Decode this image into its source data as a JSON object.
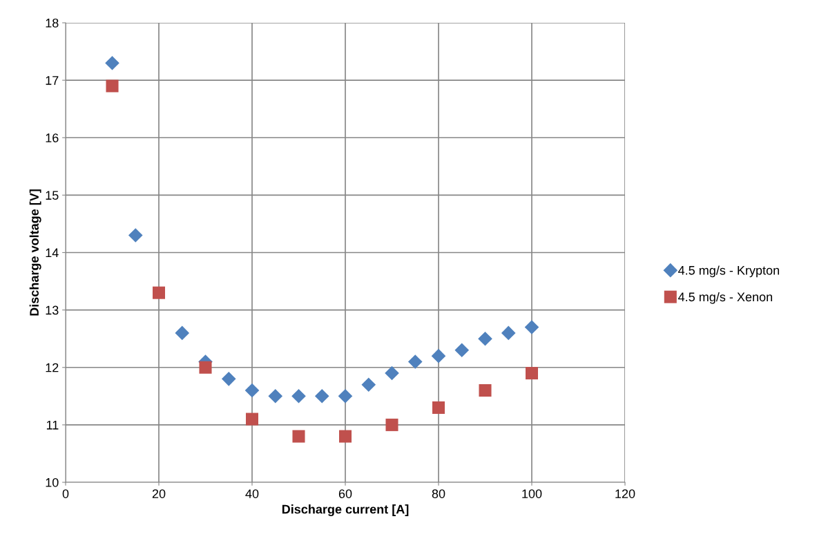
{
  "chart_data": {
    "type": "scatter",
    "xlabel": "Discharge current [A]",
    "ylabel": "Discharge voltage [V]",
    "xlim": [
      0,
      120
    ],
    "xticks": [
      0,
      20,
      40,
      60,
      80,
      100,
      120
    ],
    "ylim": [
      10,
      18
    ],
    "yticks": [
      10,
      11,
      12,
      13,
      14,
      15,
      16,
      17,
      18
    ],
    "grid": true,
    "legend": "right",
    "series": [
      {
        "name": "4.5 mg/s - Krypton",
        "color": "#4f81bd",
        "marker": "diamond",
        "x": [
          10,
          15,
          25,
          30,
          35,
          40,
          45,
          50,
          55,
          60,
          65,
          70,
          75,
          80,
          85,
          90,
          95,
          100
        ],
        "values": [
          17.3,
          14.3,
          12.6,
          12.1,
          11.8,
          11.6,
          11.5,
          11.5,
          11.5,
          11.5,
          11.7,
          11.9,
          12.1,
          12.2,
          12.3,
          12.5,
          12.6,
          12.7
        ]
      },
      {
        "name": "4.5 mg/s - Xenon",
        "color": "#c0504d",
        "marker": "square",
        "x": [
          10,
          20,
          30,
          40,
          50,
          60,
          70,
          80,
          90,
          100
        ],
        "values": [
          16.9,
          13.3,
          12.0,
          11.1,
          10.8,
          10.8,
          11.0,
          11.3,
          11.6,
          11.9
        ]
      }
    ]
  }
}
